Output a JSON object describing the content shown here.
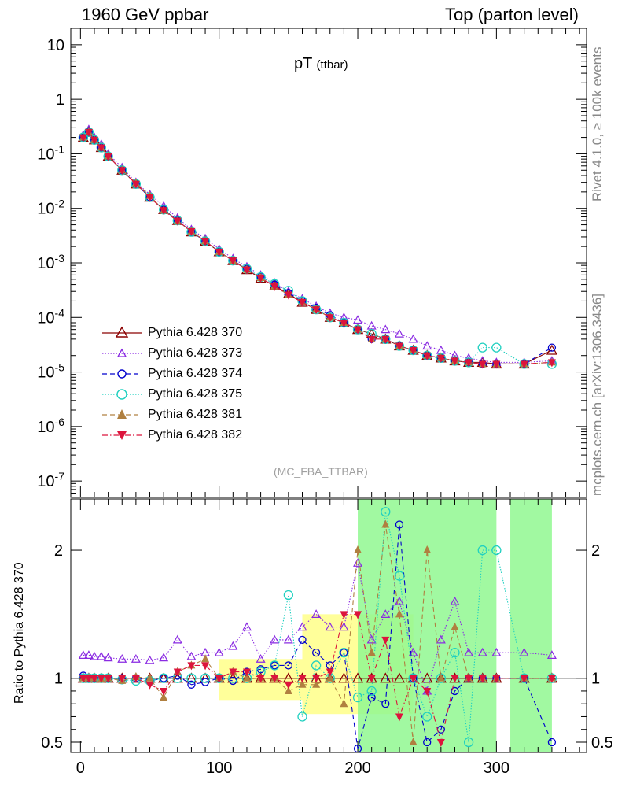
{
  "header": {
    "left": "1960 GeV ppbar",
    "right": "Top (parton level)"
  },
  "side_labels": {
    "rivet": "Rivet 4.1.0, ≥ 100k events",
    "mcplots": "mcplots.cern.ch [arXiv:1306.3436]"
  },
  "colors": {
    "s370": "#8b0000",
    "s373": "#8a2be2",
    "s374": "#0000cd",
    "s375": "#20d0c0",
    "s381": "#b08040",
    "s382": "#dc143c",
    "band_yellow": "#ffff88",
    "band_green": "#90f890"
  },
  "chart_data": [
    {
      "type": "scatter",
      "title": "pT",
      "title_sub": "(ttbar)",
      "watermark": "(MC_FBA_TTBAR)",
      "yscale": "log",
      "xlim": [
        -7,
        365
      ],
      "ylim": [
        5e-08,
        20
      ],
      "ytick_labels": [
        "10",
        "1",
        "10^-1",
        "10^-2",
        "10^-3",
        "10^-4",
        "10^-5",
        "10^-6",
        "10^-7"
      ],
      "legend": [
        {
          "name": "Pythia 6.428 370",
          "marker": "triangle-up-open",
          "color": "#8b0000",
          "line": "solid"
        },
        {
          "name": "Pythia 6.428 373",
          "marker": "triangle-up-open-small",
          "color": "#8a2be2",
          "line": "dotted"
        },
        {
          "name": "Pythia 6.428 374",
          "marker": "circle-open",
          "color": "#0000cd",
          "line": "dashed"
        },
        {
          "name": "Pythia 6.428 375",
          "marker": "circle-open",
          "color": "#20d0c0",
          "line": "dotted"
        },
        {
          "name": "Pythia 6.428 381",
          "marker": "triangle-up-filled",
          "color": "#b08040",
          "line": "dashed"
        },
        {
          "name": "Pythia 6.428 382",
          "marker": "triangle-down-filled",
          "color": "#dc143c",
          "line": "dashdot"
        }
      ],
      "x": [
        2,
        6,
        10,
        15,
        20,
        30,
        40,
        50,
        60,
        70,
        80,
        90,
        100,
        110,
        120,
        130,
        140,
        150,
        160,
        170,
        180,
        190,
        200,
        210,
        220,
        230,
        240,
        250,
        260,
        270,
        280,
        290,
        300,
        320,
        340
      ],
      "series": [
        {
          "name": "Pythia 6.428 370",
          "values": [
            0.2,
            0.26,
            0.18,
            0.13,
            0.09,
            0.05,
            0.028,
            0.016,
            0.0095,
            0.006,
            0.0037,
            0.0025,
            0.0016,
            0.0011,
            0.00075,
            0.00052,
            0.00038,
            0.00027,
            0.00019,
            0.00014,
            0.0001,
            8e-05,
            6e-05,
            5e-05,
            4e-05,
            3e-05,
            2.5e-05,
            2e-05,
            1.8e-05,
            1.6e-05,
            1.5e-05,
            1.5e-05,
            1.4e-05,
            1.4e-05,
            2.5e-05
          ]
        },
        {
          "name": "Pythia 6.428 373",
          "values": [
            0.22,
            0.28,
            0.2,
            0.15,
            0.1,
            0.056,
            0.03,
            0.018,
            0.011,
            0.0067,
            0.0041,
            0.0028,
            0.0018,
            0.0012,
            0.00085,
            0.0006,
            0.00043,
            0.0003,
            0.00022,
            0.00016,
            0.00012,
            0.0001,
            9e-05,
            7e-05,
            6e-05,
            5e-05,
            4e-05,
            3e-05,
            2.5e-05,
            2e-05,
            1.8e-05,
            1.6e-05,
            1.5e-05,
            1.5e-05,
            1.6e-05
          ]
        },
        {
          "name": "Pythia 6.428 374",
          "values": [
            0.2,
            0.25,
            0.18,
            0.13,
            0.09,
            0.05,
            0.028,
            0.016,
            0.0095,
            0.0061,
            0.0037,
            0.0025,
            0.0016,
            0.0011,
            0.00078,
            0.00056,
            0.0004,
            0.00028,
            0.0002,
            0.00015,
            0.00011,
            8e-05,
            6e-05,
            4e-05,
            4e-05,
            3e-05,
            2.5e-05,
            2e-05,
            1.8e-05,
            1.6e-05,
            1.5e-05,
            1.4e-05,
            1.4e-05,
            1.4e-05,
            2.8e-05
          ]
        },
        {
          "name": "Pythia 6.428 375",
          "values": [
            0.2,
            0.25,
            0.18,
            0.13,
            0.09,
            0.05,
            0.028,
            0.016,
            0.0095,
            0.006,
            0.0037,
            0.0025,
            0.0016,
            0.0011,
            0.00078,
            0.00055,
            0.00041,
            0.00031,
            0.0002,
            0.00014,
            0.0001,
            8e-05,
            6e-05,
            5e-05,
            4e-05,
            3e-05,
            2.5e-05,
            2e-05,
            1.8e-05,
            1.6e-05,
            1.5e-05,
            2.8e-05,
            2.8e-05,
            1.4e-05,
            1.4e-05
          ]
        },
        {
          "name": "Pythia 6.428 381",
          "values": [
            0.2,
            0.25,
            0.18,
            0.13,
            0.09,
            0.05,
            0.029,
            0.017,
            0.0092,
            0.0058,
            0.0038,
            0.0025,
            0.0016,
            0.0011,
            0.00075,
            0.00053,
            0.00037,
            0.00026,
            0.00019,
            0.00014,
            0.0001,
            8e-05,
            6e-05,
            4e-05,
            4e-05,
            3e-05,
            2.5e-05,
            2e-05,
            1.8e-05,
            1.6e-05,
            1.5e-05,
            1.4e-05,
            1.4e-05,
            1.4e-05,
            1.5e-05
          ]
        },
        {
          "name": "Pythia 6.428 382",
          "values": [
            0.2,
            0.25,
            0.18,
            0.13,
            0.09,
            0.05,
            0.028,
            0.016,
            0.0092,
            0.0059,
            0.0038,
            0.0025,
            0.0016,
            0.0011,
            0.00075,
            0.00053,
            0.00037,
            0.00026,
            0.00019,
            0.00014,
            0.0001,
            8e-05,
            6e-05,
            4e-05,
            4e-05,
            3e-05,
            2.5e-05,
            2e-05,
            1.8e-05,
            1.6e-05,
            1.5e-05,
            1.4e-05,
            1.4e-05,
            1.4e-05,
            1.5e-05
          ]
        }
      ]
    },
    {
      "type": "scatter",
      "ylabel": "Ratio to Pythia 6.428 370",
      "xlabel": "",
      "xlim": [
        -7,
        365
      ],
      "ylim": [
        0.42,
        2.4
      ],
      "xtick_labels": [
        "0",
        "100",
        "200",
        "300"
      ],
      "ytick_labels": [
        "0.5",
        "1",
        "2"
      ],
      "reference_line": 1,
      "x": [
        2,
        6,
        10,
        15,
        20,
        30,
        40,
        50,
        60,
        70,
        80,
        90,
        100,
        110,
        120,
        130,
        140,
        150,
        160,
        170,
        180,
        190,
        200,
        210,
        220,
        230,
        240,
        250,
        260,
        270,
        280,
        290,
        300,
        320,
        340
      ],
      "uncertainty_band": [
        {
          "x0": 100,
          "x1": 160,
          "low": 0.83,
          "high": 1.15,
          "color": "yellow"
        },
        {
          "x0": 160,
          "x1": 240,
          "low": 0.72,
          "high": 1.5,
          "color": "yellow"
        },
        {
          "x0": 200,
          "x1": 300,
          "low": 0.42,
          "high": 2.4,
          "color": "green"
        },
        {
          "x0": 310,
          "x1": 340,
          "low": 0.42,
          "high": 2.4,
          "color": "green"
        }
      ],
      "series": [
        {
          "name": "Pythia 6.428 370",
          "values": [
            1,
            1,
            1,
            1,
            1,
            1,
            1,
            1,
            1,
            1,
            1,
            1,
            1,
            1,
            1,
            1,
            1,
            1,
            1,
            1,
            1,
            1,
            1,
            1,
            1,
            1,
            1,
            1,
            1,
            1,
            1,
            1,
            1,
            1,
            1
          ]
        },
        {
          "name": "Pythia 6.428 373",
          "values": [
            1.18,
            1.18,
            1.17,
            1.17,
            1.16,
            1.15,
            1.15,
            1.14,
            1.16,
            1.3,
            1.17,
            1.2,
            1.2,
            1.25,
            1.4,
            1.15,
            1.3,
            1.3,
            1.4,
            1.5,
            1.4,
            1.4,
            1.9,
            1.3,
            1.5,
            1.6,
            1.2,
            0.9,
            1.3,
            1.6,
            1.2,
            1.2,
            1.2,
            1.2,
            1.18
          ]
        },
        {
          "name": "Pythia 6.428 374",
          "values": [
            1.02,
            1.0,
            1.0,
            1.0,
            1.0,
            1.0,
            1.0,
            0.98,
            1.0,
            1.02,
            0.95,
            0.97,
            1.0,
            0.98,
            1.05,
            1.07,
            1.1,
            1.1,
            1.3,
            1.2,
            1.1,
            1.2,
            0.45,
            0.85,
            0.8,
            2.2,
            1.0,
            0.5,
            0.6,
            0.9,
            1.0,
            1.0,
            1.0,
            1.0,
            0.5
          ]
        },
        {
          "name": "Pythia 6.428 375",
          "values": [
            1.0,
            1.0,
            1.0,
            1.0,
            1.0,
            0.99,
            0.98,
            0.98,
            1.0,
            1.0,
            1.0,
            1.0,
            1.0,
            1.0,
            1.0,
            1.05,
            1.1,
            1.65,
            0.7,
            1.1,
            1.0,
            1.2,
            0.85,
            0.9,
            2.3,
            1.8,
            1.0,
            0.7,
            1.0,
            1.2,
            0.5,
            2.0,
            2.0,
            1.0,
            1.0
          ]
        },
        {
          "name": "Pythia 6.428 381",
          "values": [
            1.0,
            1.0,
            1.0,
            0.99,
            1.0,
            0.98,
            1.01,
            1.0,
            0.85,
            1.05,
            1.1,
            1.15,
            1.0,
            1.05,
            1.0,
            1.0,
            1.0,
            0.9,
            0.95,
            0.95,
            1.0,
            0.8,
            2.0,
            1.2,
            2.2,
            1.5,
            0.5,
            2.0,
            1.0,
            1.4,
            1.0,
            1.0,
            1.0,
            1.0,
            1.0
          ]
        },
        {
          "name": "Pythia 6.428 382",
          "values": [
            1.0,
            1.0,
            1.0,
            1.0,
            1.0,
            1.0,
            1.0,
            0.95,
            0.9,
            1.05,
            1.1,
            1.1,
            1.0,
            1.05,
            1.05,
            1.0,
            1.0,
            0.95,
            1.0,
            1.0,
            1.05,
            1.5,
            1.5,
            1.0,
            1.3,
            0.7,
            1.0,
            0.9,
            0.5,
            1.0,
            1.0,
            1.0,
            1.0,
            1.0,
            1.0
          ]
        }
      ]
    }
  ]
}
